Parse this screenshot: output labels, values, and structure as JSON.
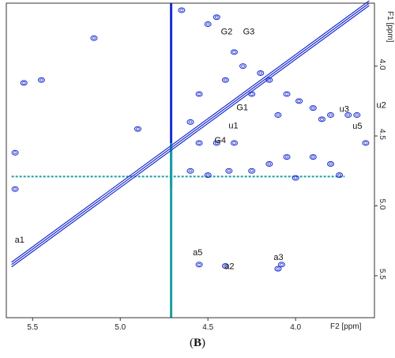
{
  "figure": {
    "panel_label": "B",
    "caption_open": "(",
    "caption_close": ")"
  },
  "colors": {
    "contour": "#1a2ccf",
    "solvent": "#1aa0a0",
    "frame": "#333333",
    "text": "#111111"
  },
  "chart_data": {
    "type": "scatter",
    "subtype": "2D NMR contour spectrum",
    "title": "",
    "xlabel": "F2 [ppm]",
    "ylabel": "F1 [ppm]",
    "xlim": [
      5.65,
      3.55
    ],
    "ylim": [
      3.55,
      5.8
    ],
    "x_reversed": true,
    "y_reversed": false,
    "x_ticks": [
      5.5,
      5.0,
      4.5,
      4.0
    ],
    "x_tick_labels": [
      "5.5",
      "5.0",
      "4.5",
      "4.0"
    ],
    "y_ticks": [
      4.0,
      4.5,
      5.0,
      5.5
    ],
    "y_tick_labels": [
      "4.0",
      "4.5",
      "5.0",
      "5.5"
    ],
    "grid": false,
    "diagonal": {
      "from": [
        5.62,
        5.42
      ],
      "to": [
        3.58,
        3.55
      ]
    },
    "solvent_signal": {
      "f2": 4.71,
      "f1_range": [
        3.55,
        5.8
      ]
    },
    "solvent_band_f1": 4.79,
    "cross_peaks_f2": [
      [
        5.55,
        4.12
      ],
      [
        5.45,
        4.1
      ],
      [
        5.15,
        3.8
      ],
      [
        4.6,
        4.4
      ],
      [
        4.55,
        4.2
      ],
      [
        4.35,
        3.9
      ],
      [
        4.3,
        4.0
      ],
      [
        4.2,
        4.05
      ],
      [
        4.15,
        4.1
      ],
      [
        4.05,
        4.2
      ],
      [
        3.98,
        4.25
      ],
      [
        3.9,
        4.3
      ],
      [
        3.85,
        4.38
      ],
      [
        3.8,
        4.35
      ],
      [
        3.7,
        4.35
      ],
      [
        3.65,
        4.35
      ],
      [
        4.1,
        4.35
      ],
      [
        4.25,
        4.2
      ],
      [
        4.4,
        4.1
      ],
      [
        4.5,
        3.7
      ],
      [
        4.45,
        3.65
      ],
      [
        4.65,
        3.6
      ],
      [
        4.55,
        4.55
      ],
      [
        4.45,
        4.55
      ],
      [
        4.35,
        4.55
      ],
      [
        4.05,
        4.65
      ],
      [
        3.9,
        4.65
      ],
      [
        3.8,
        4.7
      ],
      [
        4.15,
        4.7
      ],
      [
        4.25,
        4.75
      ],
      [
        4.38,
        4.75
      ],
      [
        4.5,
        4.78
      ],
      [
        4.6,
        4.75
      ],
      [
        4.0,
        4.8
      ],
      [
        3.75,
        4.78
      ],
      [
        4.1,
        5.45
      ],
      [
        4.08,
        5.42
      ],
      [
        4.55,
        5.42
      ],
      [
        4.4,
        5.43
      ],
      [
        4.9,
        4.45
      ],
      [
        5.6,
        4.62
      ],
      [
        5.6,
        4.88
      ],
      [
        3.6,
        4.55
      ]
    ],
    "annotations": [
      {
        "label": "a1",
        "f2": 5.62,
        "f1": 5.42
      },
      {
        "label": "a5",
        "f2": 4.55,
        "f1": 5.42
      },
      {
        "label": "a2",
        "f2": 4.45,
        "f1": 5.43
      },
      {
        "label": "a3",
        "f2": 4.08,
        "f1": 5.42
      },
      {
        "label": "G1",
        "f2": 4.4,
        "f1": 4.35
      },
      {
        "label": "u1",
        "f2": 4.4,
        "f1": 4.4
      },
      {
        "label": "G4",
        "f2": 4.4,
        "f1": 4.55
      },
      {
        "label": "G2",
        "f2": 4.3,
        "f1": 3.75
      },
      {
        "label": "G3",
        "f2": 4.3,
        "f1": 3.75
      },
      {
        "label": "u3",
        "f2": 3.75,
        "f1": 4.35
      },
      {
        "label": "u5",
        "f2": 3.72,
        "f1": 4.38
      },
      {
        "label": "u2",
        "f2": 3.62,
        "f1": 4.3
      }
    ]
  }
}
